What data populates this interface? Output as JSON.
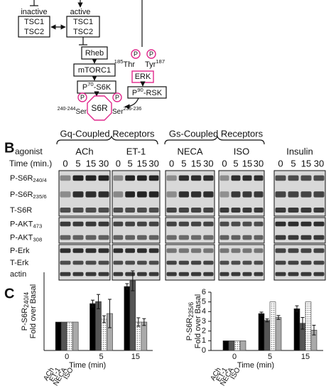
{
  "diagram": {
    "states": [
      "inactive",
      "active"
    ],
    "tsc": [
      "TSC1",
      "TSC2"
    ],
    "rheb": "Rheb",
    "mtorc1": "mTORC1",
    "s6k": {
      "text": "P",
      "sup": "70",
      "post": "-S6K"
    },
    "rsk": {
      "text": "P",
      "sup": "90",
      "post": "-RSK"
    },
    "erk": "ERK",
    "thr": {
      "sup": "185",
      "text": "Thr"
    },
    "tyr": {
      "text": "Tyr",
      "sup": "187"
    },
    "phospho": "P",
    "s6r": "S6R",
    "ser_left": {
      "sup": "240-244",
      "text": "Ser"
    },
    "ser_right": {
      "text": "Ser",
      "sup": "235-236"
    }
  },
  "blot": {
    "label": "B",
    "groups": [
      "Gq-Coupled Receptors",
      "Gs-Coupled Receptors"
    ],
    "agonist_label": "agonist",
    "time_label": "Time (min.)",
    "agonists": [
      "ACh",
      "ET-1",
      "NECA",
      "ISO",
      "Insulin"
    ],
    "times": [
      "0",
      "5",
      "15",
      "30"
    ],
    "rows": [
      {
        "text": "P-S6R",
        "sub": "240/4"
      },
      {
        "text": "P-S6R",
        "sub": "235/6"
      },
      {
        "text": "T-S6R"
      },
      {
        "text": "P-AKT",
        "sub": "473"
      },
      {
        "text": "P-AKT",
        "sub": "308"
      },
      {
        "text": "P-Erk"
      },
      {
        "text": "T-Erk"
      },
      {
        "text": "actin"
      }
    ]
  },
  "panel_c_label": "C",
  "chart_data": [
    {
      "type": "bar",
      "ylabel": {
        "text": "P-S6R",
        "sub": "240/4",
        "line2": "Fold over Basal"
      },
      "xlabel": "Time (min)",
      "categories": [
        "0",
        "5",
        "15"
      ],
      "ylim": [
        0,
        2.75
      ],
      "series": [
        {
          "name": "ACh",
          "color": "#000000",
          "values": [
            1,
            1.65,
            2.25
          ],
          "errors": [
            null,
            0.12,
            0.1
          ]
        },
        {
          "name": "ET-1",
          "color": "#555555",
          "values": [
            1,
            1.72,
            2.45
          ],
          "errors": [
            null,
            0.25,
            0.35
          ]
        },
        {
          "name": "NECA",
          "color": "#ffffff",
          "hatch": "dots",
          "values": [
            1,
            1.1,
            1.0
          ],
          "errors": [
            null,
            0.12,
            0.15
          ]
        },
        {
          "name": "ISO",
          "color": "#aaaaaa",
          "values": [
            1,
            1.3,
            1.0
          ],
          "errors": [
            null,
            0.5,
            0.12
          ]
        }
      ]
    },
    {
      "type": "bar",
      "ylabel": {
        "text": "P-S6R",
        "sub": "235/6",
        "line2": "Fold over Basal"
      },
      "xlabel": "Time (min)",
      "categories": [
        "0",
        "5",
        "15"
      ],
      "ylim": [
        0,
        6
      ],
      "yticks": [
        0,
        1,
        2,
        3,
        4,
        5,
        6
      ],
      "series": [
        {
          "name": "ACh",
          "color": "#000000",
          "values": [
            1,
            3.8,
            4.3
          ],
          "errors": [
            null,
            0.15,
            0.3
          ]
        },
        {
          "name": "ET-1",
          "color": "#555555",
          "values": [
            1,
            3.1,
            2.8
          ],
          "errors": [
            null,
            0.15,
            0.6
          ]
        },
        {
          "name": "NECA",
          "color": "#ffffff",
          "hatch": "dots",
          "values": [
            1,
            5,
            5
          ],
          "errors": [
            null,
            null,
            null
          ]
        },
        {
          "name": "ISO",
          "color": "#aaaaaa",
          "values": [
            1,
            3.4,
            2.1
          ],
          "errors": [
            null,
            0.2,
            0.5
          ]
        }
      ]
    }
  ]
}
